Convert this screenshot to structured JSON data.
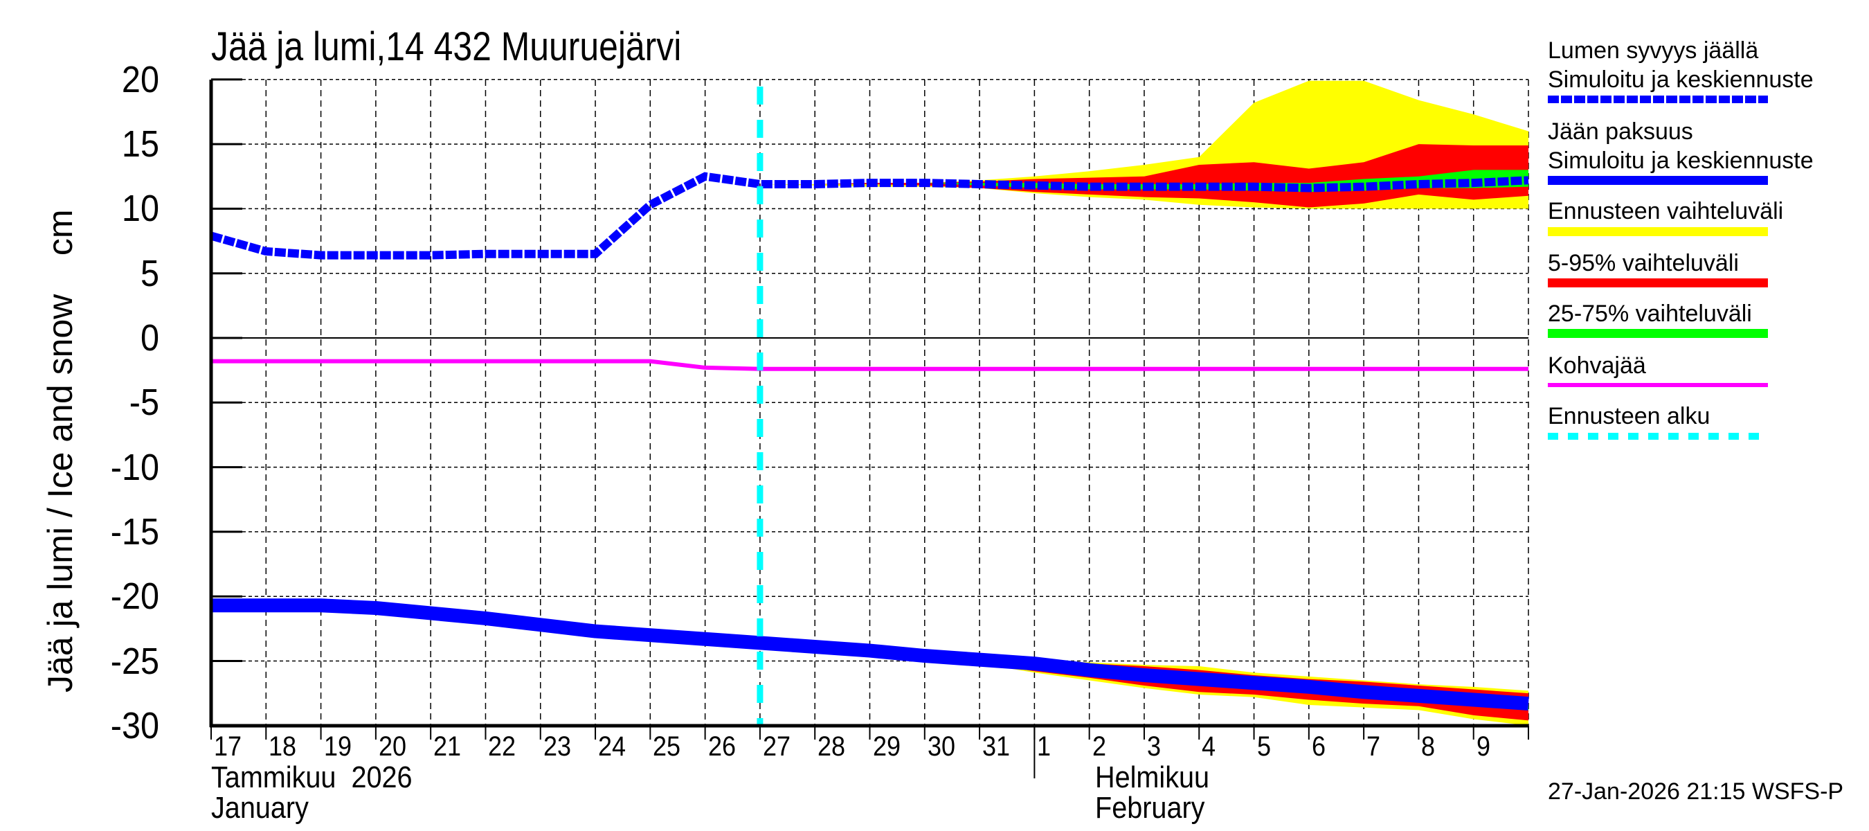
{
  "header": {
    "title": "Jää ja lumi,14 432 Muuruejärvi"
  },
  "axes": {
    "ylabel": "Jää ja lumi / Ice and snow    cm",
    "yticks": [
      "20",
      "15",
      "10",
      "5",
      "0",
      "-5",
      "-10",
      "-15",
      "-20",
      "-25",
      "-30"
    ],
    "xticks": [
      "17",
      "18",
      "19",
      "20",
      "21",
      "22",
      "23",
      "24",
      "25",
      "26",
      "27",
      "28",
      "29",
      "30",
      "31",
      "1",
      "2",
      "3",
      "4",
      "5",
      "6",
      "7",
      "8",
      "9"
    ],
    "month1_fi": "Tammikuu  2026",
    "month1_en": "January",
    "month2_fi": "Helmikuu",
    "month2_en": "February"
  },
  "legend": {
    "snow_title": "Lumen syvyys jäällä",
    "snow_sub": "Simuloitu ja keskiennuste",
    "ice_title": "Jään paksuus",
    "ice_sub": "Simuloitu ja keskiennuste",
    "range_all": "Ennusteen vaihteluväli",
    "range_5_95": "5-95% vaihteluväli",
    "range_25_75": "25-75% vaihteluväli",
    "slush": "Kohvajää",
    "forecast_start": "Ennusteen alku"
  },
  "footer": {
    "timestamp": "27-Jan-2026 21:15 WSFS-P"
  },
  "colors": {
    "snow": "#0000ff",
    "ice": "#0000ff",
    "range_all": "#ffff00",
    "range_5_95": "#ff0000",
    "range_25_75": "#00ff00",
    "slush": "#ff00ff",
    "forecast_start": "#00ffff"
  },
  "chart_data": {
    "type": "line",
    "title": "Jää ja lumi,14 432 Muuruejärvi",
    "xlabel": "",
    "ylabel": "Jää ja lumi / Ice and snow cm",
    "ylim": [
      -30,
      20
    ],
    "grid": true,
    "legend_position": "right",
    "x": [
      "2026-01-17",
      "2026-01-18",
      "2026-01-19",
      "2026-01-20",
      "2026-01-21",
      "2026-01-22",
      "2026-01-23",
      "2026-01-24",
      "2026-01-25",
      "2026-01-26",
      "2026-01-27",
      "2026-01-28",
      "2026-01-29",
      "2026-01-30",
      "2026-01-31",
      "2026-02-01",
      "2026-02-02",
      "2026-02-03",
      "2026-02-04",
      "2026-02-05",
      "2026-02-06",
      "2026-02-07",
      "2026-02-08",
      "2026-02-09",
      "2026-02-10"
    ],
    "forecast_start": "2026-01-27",
    "series": [
      {
        "name": "Lumen syvyys jäällä – Simuloitu ja keskiennuste",
        "style": "dashed",
        "color": "#0000ff",
        "values": [
          7.9,
          6.7,
          6.4,
          6.4,
          6.4,
          6.5,
          6.5,
          6.5,
          10.3,
          12.5,
          11.9,
          11.9,
          12.0,
          12.0,
          11.9,
          11.8,
          11.7,
          11.7,
          11.7,
          11.7,
          11.6,
          11.7,
          11.9,
          12.0,
          12.2
        ]
      },
      {
        "name": "Jään paksuus – Simuloitu ja keskiennuste",
        "style": "solid",
        "color": "#0000ff",
        "values": [
          -20.7,
          -20.7,
          -20.7,
          -20.9,
          -21.3,
          -21.7,
          -22.2,
          -22.7,
          -23.0,
          -23.3,
          -23.6,
          -23.9,
          -24.2,
          -24.6,
          -24.9,
          -25.2,
          -25.7,
          -26.1,
          -26.4,
          -26.7,
          -27.0,
          -27.4,
          -27.7,
          -28.0,
          -28.3
        ]
      },
      {
        "name": "Kohvajää",
        "style": "solid",
        "color": "#ff00ff",
        "values": [
          -1.8,
          -1.8,
          -1.8,
          -1.8,
          -1.8,
          -1.8,
          -1.8,
          -1.8,
          -1.8,
          -2.3,
          -2.4,
          -2.4,
          -2.4,
          -2.4,
          -2.4,
          -2.4,
          -2.4,
          -2.4,
          -2.4,
          -2.4,
          -2.4,
          -2.4,
          -2.4,
          -2.4,
          -2.4
        ]
      }
    ],
    "bands": {
      "x_start_index": 10,
      "snow": {
        "range_all_upper": [
          11.9,
          11.9,
          12.0,
          12.0,
          12.2,
          12.5,
          12.9,
          13.4,
          14.0,
          18.2,
          19.9,
          19.9,
          18.4,
          17.3,
          16.0
        ],
        "range_5_95_upper": [
          11.9,
          11.9,
          12.0,
          12.0,
          12.1,
          12.3,
          12.4,
          12.5,
          13.4,
          13.6,
          13.1,
          13.6,
          15.0,
          14.9,
          14.9
        ],
        "range_25_75_upper": [
          11.9,
          11.9,
          12.0,
          12.0,
          12.0,
          12.0,
          11.9,
          11.9,
          11.9,
          12.0,
          12.0,
          12.3,
          12.5,
          13.0,
          13.0
        ],
        "range_25_75_lower": [
          11.9,
          11.9,
          12.0,
          12.0,
          11.8,
          11.6,
          11.5,
          11.5,
          11.5,
          11.4,
          11.3,
          11.4,
          11.6,
          11.6,
          11.7
        ],
        "range_5_95_lower": [
          11.9,
          11.9,
          11.9,
          11.8,
          11.6,
          11.3,
          11.1,
          10.9,
          10.8,
          10.5,
          10.1,
          10.4,
          11.1,
          10.7,
          11.0
        ],
        "range_all_lower": [
          11.9,
          11.8,
          11.7,
          11.7,
          11.6,
          11.2,
          10.9,
          10.7,
          10.3,
          10.1,
          10.0,
          10.0,
          10.0,
          10.0,
          10.0
        ]
      },
      "ice": {
        "range_all_upper": [
          -23.6,
          -23.9,
          -24.2,
          -24.5,
          -24.6,
          -25.0,
          -25.1,
          -25.3,
          -25.4,
          -25.9,
          -26.2,
          -26.5,
          -26.8,
          -27.0,
          -27.3
        ],
        "range_5_95_upper": [
          -23.6,
          -23.9,
          -24.2,
          -24.6,
          -24.8,
          -25.0,
          -25.2,
          -25.4,
          -25.7,
          -26.1,
          -26.4,
          -26.6,
          -26.9,
          -27.2,
          -27.5
        ],
        "range_25_75_upper": [
          -23.6,
          -23.9,
          -24.2,
          -24.6,
          -24.9,
          -25.1,
          -25.4,
          -25.7,
          -26.0,
          -26.3,
          -26.6,
          -26.9,
          -27.3,
          -27.6,
          -27.9
        ],
        "range_25_75_lower": [
          -23.6,
          -23.9,
          -24.2,
          -24.6,
          -24.9,
          -25.4,
          -25.9,
          -26.3,
          -26.7,
          -27.0,
          -27.4,
          -27.7,
          -28.1,
          -28.4,
          -28.8
        ],
        "range_5_95_lower": [
          -23.6,
          -23.9,
          -24.2,
          -24.7,
          -25.1,
          -25.8,
          -26.3,
          -26.9,
          -27.4,
          -27.6,
          -28.0,
          -28.3,
          -28.5,
          -29.2,
          -29.6
        ],
        "range_all_lower": [
          -23.6,
          -23.9,
          -24.2,
          -24.7,
          -25.2,
          -25.9,
          -26.5,
          -27.1,
          -27.6,
          -27.8,
          -28.4,
          -28.6,
          -28.8,
          -29.5,
          -30.0
        ]
      }
    }
  }
}
